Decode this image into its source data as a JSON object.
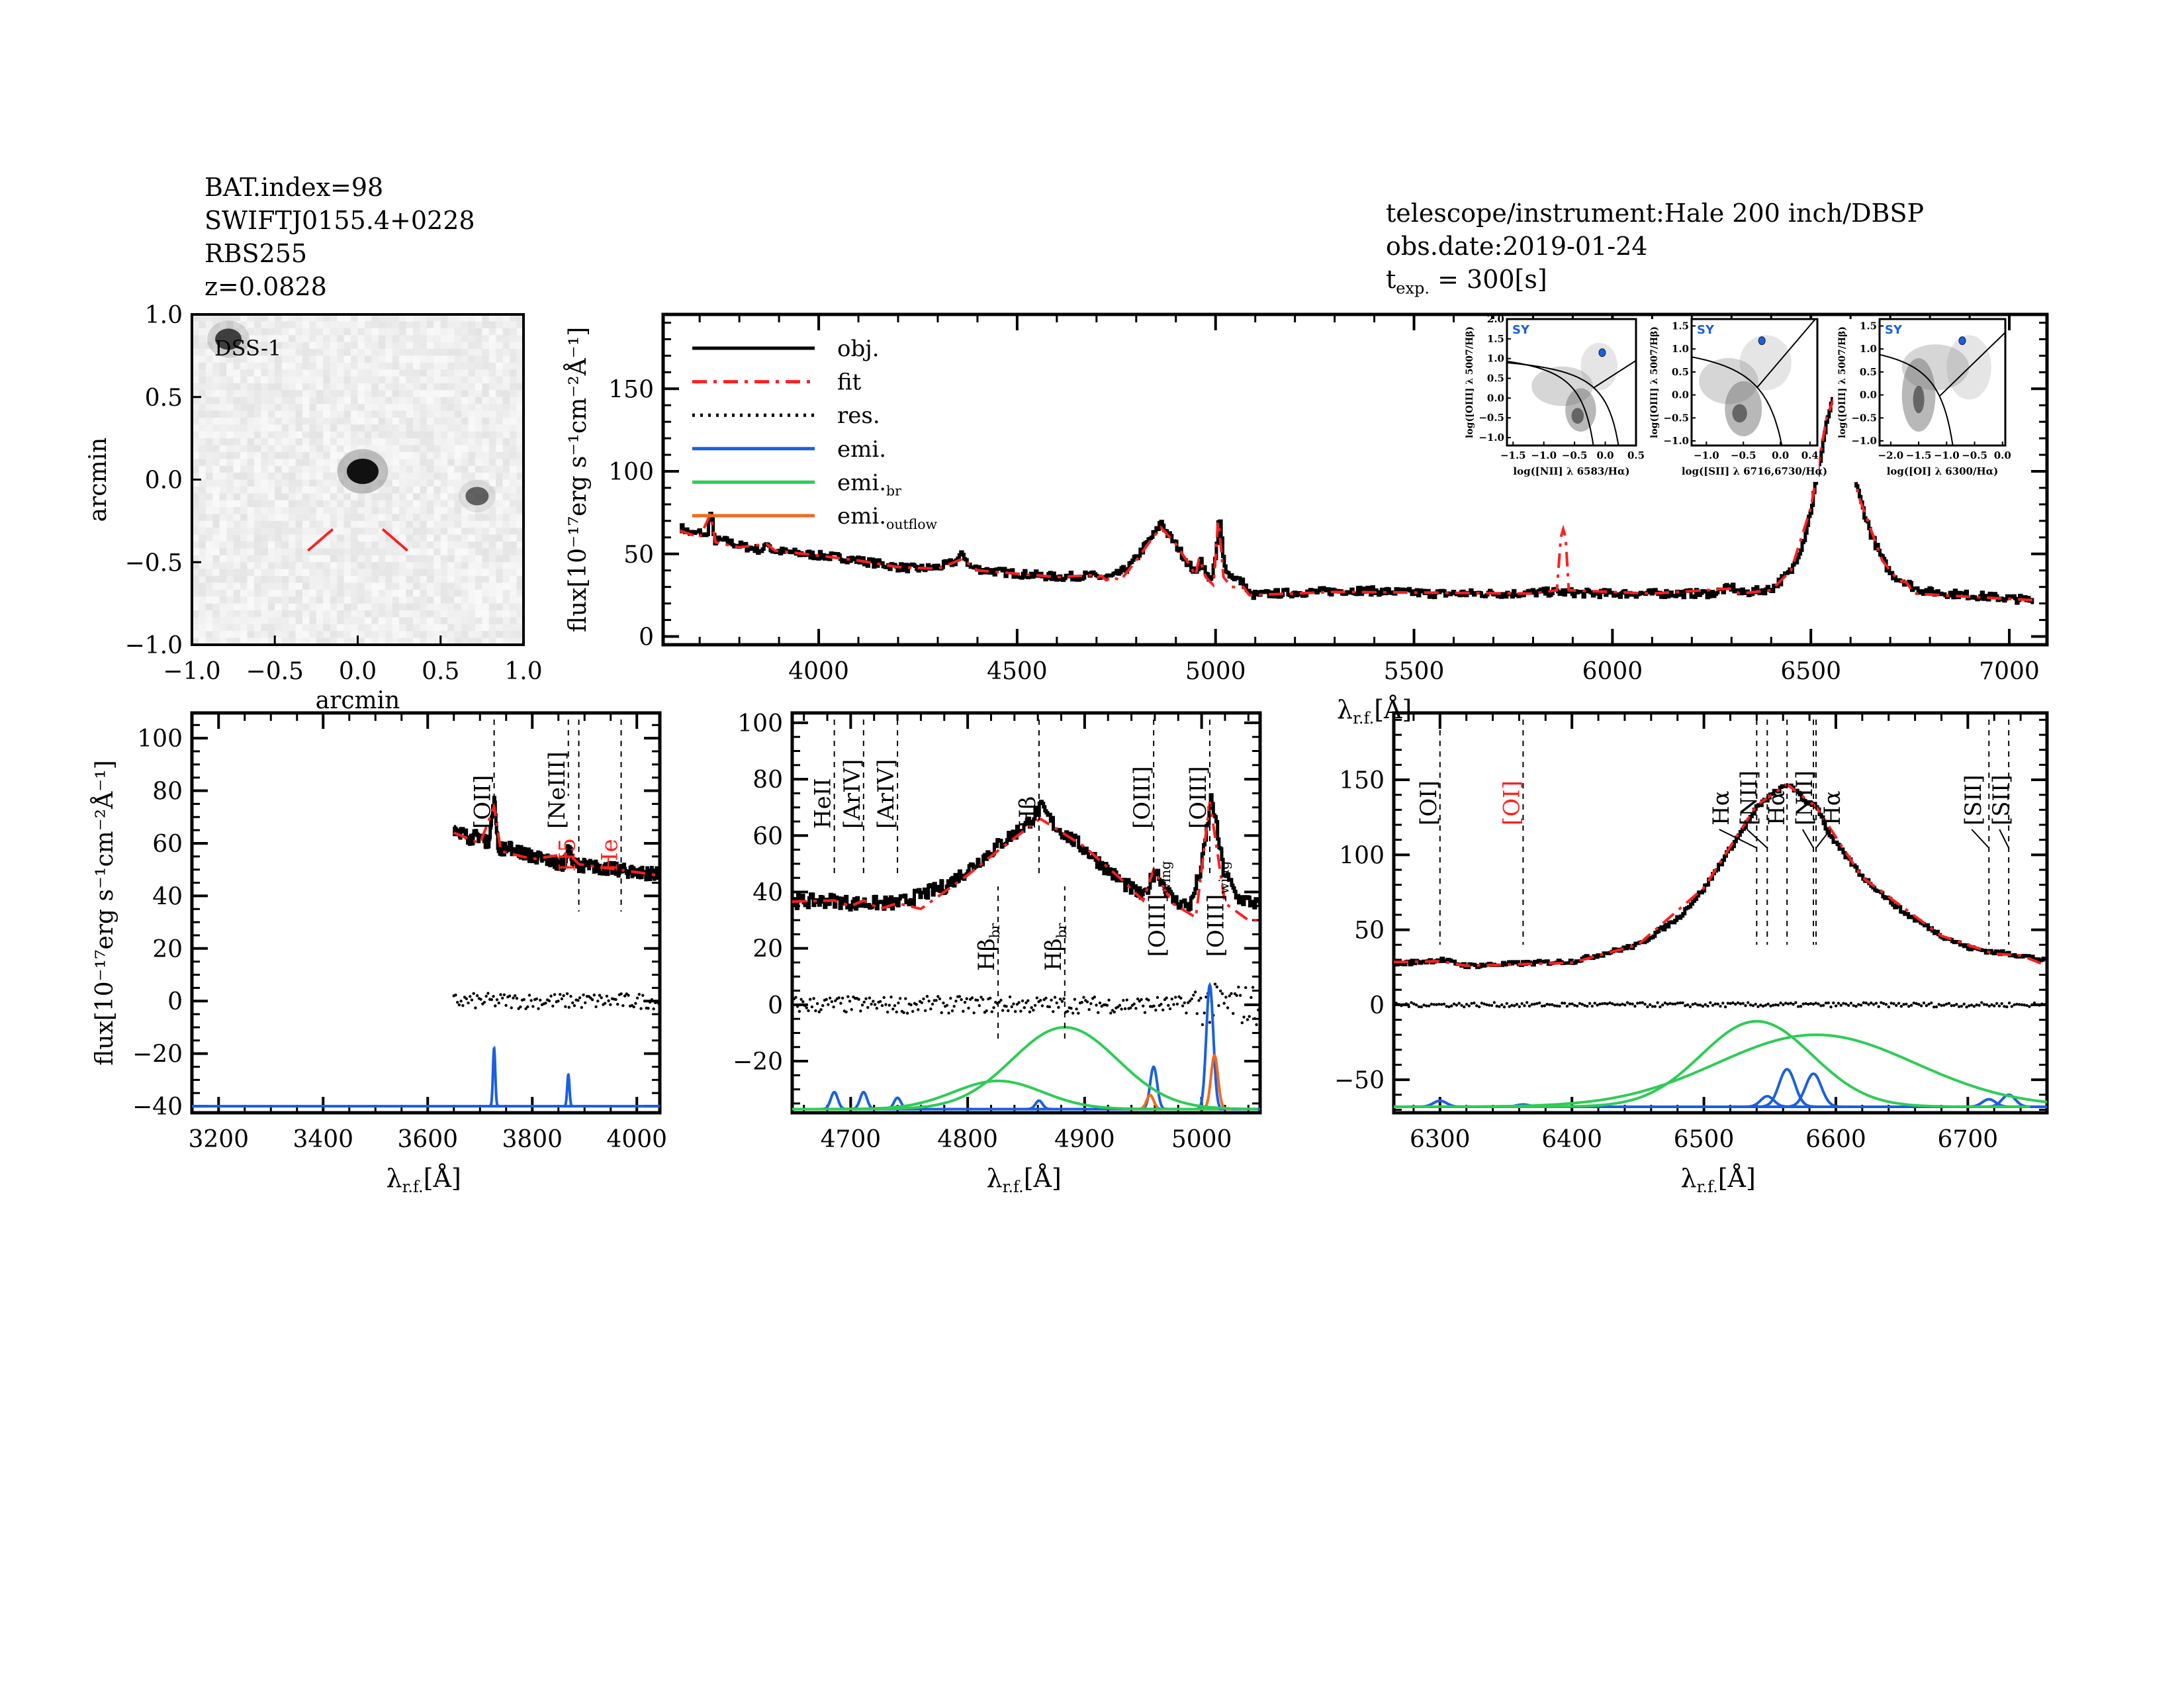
{
  "header": {
    "left": [
      "BAT.index=98",
      "SWIFTJ0155.4+0228",
      "RBS255",
      "z=0.0828"
    ],
    "telescope": "telescope/instrument:Hale 200 inch/DBSP",
    "obs_date": "obs.date:2019-01-24",
    "texp_label": "t",
    "texp_sub": "exp.",
    "texp_value": "= 300[s]"
  },
  "colors": {
    "obj": "#000000",
    "fit": "#ff2020",
    "res": "#000000",
    "emi": "#1a5fe0",
    "emi_br": "#2ecc55",
    "emi_outflow": "#f06a1e",
    "marker_red": "#ff2020",
    "bpt_point": "#1a5fe0"
  },
  "dss": {
    "label": "DSS-1",
    "xlabel": "arcmin",
    "ylabel": "arcmin",
    "xlim": [
      -1.0,
      1.0
    ],
    "ylim": [
      -1.0,
      1.0
    ],
    "ticks": [
      -1.0,
      -0.5,
      0.0,
      0.5,
      1.0
    ],
    "tick_labels": [
      "−1.0",
      "−0.5",
      "0.0",
      "0.5",
      "1.0"
    ],
    "sources": [
      {
        "x": 0.03,
        "y": 0.05,
        "brightness": 1.0
      },
      {
        "x": -0.78,
        "y": 0.85,
        "brightness": 0.6
      },
      {
        "x": 0.72,
        "y": -0.1,
        "brightness": 0.35
      }
    ]
  },
  "legend": [
    {
      "label": "obj.",
      "sub": "",
      "style": "solid",
      "color": "#000000"
    },
    {
      "label": "fit",
      "sub": "",
      "style": "dashdot",
      "color": "#ff2020"
    },
    {
      "label": "res.",
      "sub": "",
      "style": "dotted",
      "color": "#000000"
    },
    {
      "label": "emi.",
      "sub": "",
      "style": "solid",
      "color": "#1a5fe0"
    },
    {
      "label": "emi.",
      "sub": "br",
      "style": "solid",
      "color": "#2ecc55"
    },
    {
      "label": "emi.",
      "sub": "outflow",
      "style": "solid",
      "color": "#f06a1e"
    }
  ],
  "chart_data": [
    {
      "id": "main",
      "type": "line",
      "ylabel": "flux[10⁻¹⁷erg s⁻¹cm⁻²Å⁻¹]",
      "xlabel": "λ",
      "xlabel_sub": "r.f.",
      "xlabel_unit": "[Å]",
      "xlim": [
        3608,
        7095
      ],
      "ylim": [
        -5,
        195
      ],
      "xticks": [
        4000,
        4500,
        5000,
        5500,
        6000,
        6500,
        7000
      ],
      "xminor": 100,
      "yticks": [
        0,
        50,
        100,
        150
      ],
      "yminor": 10,
      "series": [
        "obj",
        "fit"
      ]
    },
    {
      "id": "left",
      "type": "line",
      "ylabel": "flux[10⁻¹⁷erg s⁻¹cm⁻²Å⁻¹]",
      "xlabel": "λ",
      "xlabel_sub": "r.f.",
      "xlabel_unit": "[Å]",
      "xlim": [
        3149,
        4044
      ],
      "ylim": [
        -42.5,
        109.6
      ],
      "xticks": [
        3200,
        3400,
        3600,
        3800,
        4000
      ],
      "xminor": 50,
      "yticks": [
        -40,
        -20,
        0,
        20,
        40,
        60,
        80,
        100
      ],
      "yminor": 5,
      "component_baseline": -40,
      "res_scatter": 3,
      "components": [
        {
          "kind": "emi",
          "center": 3727,
          "amp": 22,
          "sigma": 2.2
        },
        {
          "kind": "emi",
          "center": 3869,
          "amp": 12,
          "sigma": 2.2
        }
      ],
      "markers": [
        {
          "wave": 3727,
          "label": "[OII]",
          "sub": "",
          "color": "black",
          "pos": "top"
        },
        {
          "wave": 3869,
          "label": "[NeIII]",
          "sub": "",
          "color": "black",
          "pos": "top"
        },
        {
          "wave": 3889,
          "label": "H5",
          "sub": "",
          "color": "red",
          "pos": "middle"
        },
        {
          "wave": 3970,
          "label": "He",
          "sub": "",
          "color": "red",
          "pos": "middle"
        }
      ]
    },
    {
      "id": "mid",
      "type": "line",
      "xlabel": "λ",
      "xlabel_sub": "r.f.",
      "xlabel_unit": "[Å]",
      "xlim": [
        4650,
        5050
      ],
      "ylim": [
        -38.3,
        103.5
      ],
      "xticks": [
        4700,
        4800,
        4900,
        5000
      ],
      "xminor": 20,
      "yticks": [
        -20,
        0,
        20,
        40,
        60,
        80,
        100
      ],
      "yminor": 5,
      "component_baseline": -37,
      "res_scatter": 3,
      "components": [
        {
          "kind": "emi",
          "center": 4686,
          "amp": 6,
          "sigma": 3
        },
        {
          "kind": "emi",
          "center": 4711,
          "amp": 6,
          "sigma": 3
        },
        {
          "kind": "emi",
          "center": 4740,
          "amp": 4,
          "sigma": 3
        },
        {
          "kind": "emi",
          "center": 4861,
          "amp": 3,
          "sigma": 3
        },
        {
          "kind": "emi",
          "center": 4959,
          "amp": 15,
          "sigma": 3
        },
        {
          "kind": "emi",
          "center": 5007,
          "amp": 44,
          "sigma": 3
        },
        {
          "kind": "emi_outflow",
          "center": 4956,
          "amp": 5,
          "sigma": 3
        },
        {
          "kind": "emi_outflow",
          "center": 5011,
          "amp": 19,
          "sigma": 3
        },
        {
          "kind": "emi_br",
          "center": 4826,
          "amp": 10,
          "sigma": 38
        },
        {
          "kind": "emi_br",
          "center": 4883,
          "amp": 29,
          "sigma": 45
        }
      ],
      "markers": [
        {
          "wave": 4686,
          "label": "HeII",
          "sub": "",
          "color": "black",
          "pos": "top"
        },
        {
          "wave": 4711,
          "label": "[ArIV]",
          "sub": "",
          "color": "black",
          "pos": "top"
        },
        {
          "wave": 4740,
          "label": "[ArIV]",
          "sub": "",
          "color": "black",
          "pos": "top"
        },
        {
          "wave": 4861,
          "label": "Hβ",
          "sub": "",
          "color": "black",
          "pos": "top"
        },
        {
          "wave": 4959,
          "label": "[OIII]",
          "sub": "",
          "color": "black",
          "pos": "top"
        },
        {
          "wave": 5007,
          "label": "[OIII]",
          "sub": "",
          "color": "black",
          "pos": "top"
        },
        {
          "wave": 4826,
          "label": "Hβ",
          "sub": "br",
          "color": "black",
          "pos": "bottom"
        },
        {
          "wave": 4883,
          "label": "Hβ",
          "sub": "br",
          "color": "black",
          "pos": "bottom"
        },
        {
          "wave": 4972,
          "label": "[OIII]",
          "sub": "wing",
          "color": "black",
          "pos": "wing"
        },
        {
          "wave": 5022,
          "label": "[OIII]",
          "sub": "wing",
          "color": "black",
          "pos": "wing"
        }
      ]
    },
    {
      "id": "right",
      "type": "line",
      "xlabel": "λ",
      "xlabel_sub": "r.f.",
      "xlabel_unit": "[Å]",
      "xlim": [
        6265,
        6760
      ],
      "ylim": [
        -72,
        194.6
      ],
      "xticks": [
        6300,
        6400,
        6500,
        6600,
        6700
      ],
      "xminor": 20,
      "yticks": [
        -50,
        0,
        50,
        100,
        150
      ],
      "yminor": 10,
      "component_baseline": -68,
      "res_scatter": 1.5,
      "components": [
        {
          "kind": "emi",
          "center": 6300,
          "amp": 4,
          "sigma": 5
        },
        {
          "kind": "emi",
          "center": 6363,
          "amp": 1.5,
          "sigma": 5
        },
        {
          "kind": "emi",
          "center": 6548,
          "amp": 7,
          "sigma": 5
        },
        {
          "kind": "emi",
          "center": 6563,
          "amp": 25,
          "sigma": 6
        },
        {
          "kind": "emi",
          "center": 6583,
          "amp": 22,
          "sigma": 6
        },
        {
          "kind": "emi",
          "center": 6716,
          "amp": 5,
          "sigma": 5
        },
        {
          "kind": "emi",
          "center": 6731,
          "amp": 8,
          "sigma": 5
        },
        {
          "kind": "emi_br",
          "center": 6540,
          "amp": 57,
          "sigma": 42
        },
        {
          "kind": "emi_br",
          "center": 6585,
          "amp": 48,
          "sigma": 75
        }
      ],
      "markers": [
        {
          "wave": 6300,
          "label": "[OI]",
          "sub": "",
          "color": "black",
          "pos": "top"
        },
        {
          "wave": 6363,
          "label": "[OI]",
          "sub": "",
          "color": "red",
          "pos": "top"
        },
        {
          "wave": 6540,
          "label": "Hα",
          "sub": "",
          "color": "black",
          "pos": "top"
        },
        {
          "wave": 6548,
          "label": "[NII]",
          "sub": "",
          "color": "black",
          "pos": "top"
        },
        {
          "wave": 6563,
          "label": "Hα",
          "sub": "",
          "color": "black",
          "pos": "top"
        },
        {
          "wave": 6583,
          "label": "[NII]",
          "sub": "",
          "color": "black",
          "pos": "top"
        },
        {
          "wave": 6585,
          "label": "Hα",
          "sub": "",
          "color": "black",
          "pos": "top"
        },
        {
          "wave": 6716,
          "label": "[SII]",
          "sub": "",
          "color": "black",
          "pos": "top"
        },
        {
          "wave": 6731,
          "label": "[SII]",
          "sub": "",
          "color": "black",
          "pos": "top"
        }
      ]
    }
  ],
  "spectrum": {
    "obj": [
      [
        3650,
        66
      ],
      [
        3680,
        62
      ],
      [
        3700,
        63
      ],
      [
        3715,
        60
      ],
      [
        3727,
        76
      ],
      [
        3735,
        58
      ],
      [
        3760,
        58
      ],
      [
        3800,
        55
      ],
      [
        3840,
        53
      ],
      [
        3860,
        52
      ],
      [
        3869,
        58
      ],
      [
        3880,
        52
      ],
      [
        3920,
        51
      ],
      [
        3960,
        50
      ],
      [
        4000,
        49
      ],
      [
        4050,
        48
      ],
      [
        4100,
        46
      ],
      [
        4150,
        44
      ],
      [
        4200,
        42
      ],
      [
        4250,
        41
      ],
      [
        4300,
        42
      ],
      [
        4340,
        45
      ],
      [
        4363,
        50
      ],
      [
        4380,
        42
      ],
      [
        4420,
        40
      ],
      [
        4500,
        38
      ],
      [
        4600,
        36
      ],
      [
        4686,
        37
      ],
      [
        4700,
        36
      ],
      [
        4740,
        36
      ],
      [
        4780,
        42
      ],
      [
        4800,
        48
      ],
      [
        4830,
        58
      ],
      [
        4850,
        64
      ],
      [
        4862,
        70
      ],
      [
        4875,
        63
      ],
      [
        4900,
        55
      ],
      [
        4930,
        44
      ],
      [
        4950,
        38
      ],
      [
        4960,
        48
      ],
      [
        4975,
        37
      ],
      [
        4990,
        35
      ],
      [
        5000,
        50
      ],
      [
        5008,
        74
      ],
      [
        5018,
        48
      ],
      [
        5030,
        38
      ],
      [
        5045,
        36
      ],
      [
        5070,
        32
      ],
      [
        5085,
        25
      ],
      [
        5150,
        26
      ],
      [
        5250,
        27
      ],
      [
        5350,
        28
      ],
      [
        5450,
        27
      ],
      [
        5550,
        26
      ],
      [
        5650,
        26
      ],
      [
        5750,
        26
      ],
      [
        5850,
        27
      ],
      [
        5950,
        26
      ],
      [
        6050,
        26
      ],
      [
        6150,
        26
      ],
      [
        6250,
        26
      ],
      [
        6300,
        30
      ],
      [
        6320,
        26
      ],
      [
        6400,
        29
      ],
      [
        6450,
        40
      ],
      [
        6480,
        58
      ],
      [
        6500,
        78
      ],
      [
        6520,
        105
      ],
      [
        6540,
        132
      ],
      [
        6555,
        143
      ],
      [
        6565,
        147
      ],
      [
        6575,
        136
      ],
      [
        6585,
        133
      ],
      [
        6595,
        112
      ],
      [
        6620,
        85
      ],
      [
        6650,
        62
      ],
      [
        6680,
        46
      ],
      [
        6700,
        38
      ],
      [
        6720,
        35
      ],
      [
        6740,
        33
      ],
      [
        6760,
        29
      ],
      [
        6800,
        27
      ],
      [
        6900,
        25
      ],
      [
        7000,
        23
      ],
      [
        7060,
        22
      ]
    ],
    "fit": [
      [
        3650,
        64
      ],
      [
        3700,
        60
      ],
      [
        3727,
        74
      ],
      [
        3740,
        57
      ],
      [
        3800,
        54
      ],
      [
        3869,
        56
      ],
      [
        3890,
        52
      ],
      [
        4000,
        49
      ],
      [
        4100,
        46
      ],
      [
        4200,
        42
      ],
      [
        4300,
        41
      ],
      [
        4363,
        47
      ],
      [
        4400,
        40
      ],
      [
        4500,
        38
      ],
      [
        4600,
        36
      ],
      [
        4686,
        37
      ],
      [
        4700,
        35
      ],
      [
        4711,
        37
      ],
      [
        4725,
        34
      ],
      [
        4740,
        36
      ],
      [
        4760,
        34
      ],
      [
        4800,
        46
      ],
      [
        4830,
        56
      ],
      [
        4862,
        66
      ],
      [
        4900,
        56
      ],
      [
        4930,
        45
      ],
      [
        4950,
        37
      ],
      [
        4959,
        48
      ],
      [
        4975,
        36
      ],
      [
        4995,
        31
      ],
      [
        5007,
        72
      ],
      [
        5020,
        36
      ],
      [
        5040,
        30
      ],
      [
        5070,
        30
      ],
      [
        5085,
        25
      ],
      [
        5300,
        27
      ],
      [
        5800,
        26
      ],
      [
        5860,
        28
      ],
      [
        5870,
        60
      ],
      [
        5876,
        65
      ],
      [
        5882,
        60
      ],
      [
        5890,
        28
      ],
      [
        6100,
        26
      ],
      [
        6300,
        29
      ],
      [
        6320,
        26
      ],
      [
        6400,
        28
      ],
      [
        6450,
        40
      ],
      [
        6500,
        78
      ],
      [
        6540,
        133
      ],
      [
        6563,
        147
      ],
      [
        6585,
        132
      ],
      [
        6620,
        85
      ],
      [
        6680,
        46
      ],
      [
        6720,
        34
      ],
      [
        6740,
        33
      ],
      [
        6760,
        26
      ],
      [
        6900,
        24
      ],
      [
        7060,
        22
      ]
    ]
  },
  "bpt": [
    {
      "xlabel": "log([NII] λ 6583/Hα)",
      "ylabel": "log([OIII] λ 5007/Hβ)",
      "tag": "SY",
      "xlim": [
        -1.6,
        0.5
      ],
      "ylim": [
        -1.2,
        2.0
      ],
      "xticks": [
        -1.5,
        -1.0,
        -0.5,
        0.0,
        0.5
      ],
      "yticks": [
        -1.0,
        -0.5,
        0.0,
        0.5,
        1.0,
        1.5,
        2.0
      ],
      "point": [
        -0.05,
        1.15
      ]
    },
    {
      "xlabel": "log([SII] λ 6716,6730/Hα)",
      "ylabel": "log([OIII] λ 5007/Hβ)",
      "tag": "SY",
      "xlim": [
        -1.2,
        0.5
      ],
      "ylim": [
        -1.1,
        1.65
      ],
      "xticks": [
        -1.0,
        -0.5,
        0.0,
        0.4
      ],
      "yticks": [
        -1.0,
        -0.5,
        0.0,
        0.5,
        1.0,
        1.5
      ],
      "point": [
        -0.25,
        1.18
      ]
    },
    {
      "xlabel": "log([OI] λ 6300/Hα)",
      "ylabel": "log([OIII] λ 5007/Hβ)",
      "tag": "SY",
      "xlim": [
        -2.2,
        0.05
      ],
      "ylim": [
        -1.1,
        1.65
      ],
      "xticks": [
        -2.0,
        -1.5,
        -1.0,
        -0.5,
        0.0
      ],
      "yticks": [
        -1.0,
        -0.5,
        0.0,
        0.5,
        1.0,
        1.5
      ],
      "point": [
        -0.72,
        1.18
      ]
    }
  ]
}
